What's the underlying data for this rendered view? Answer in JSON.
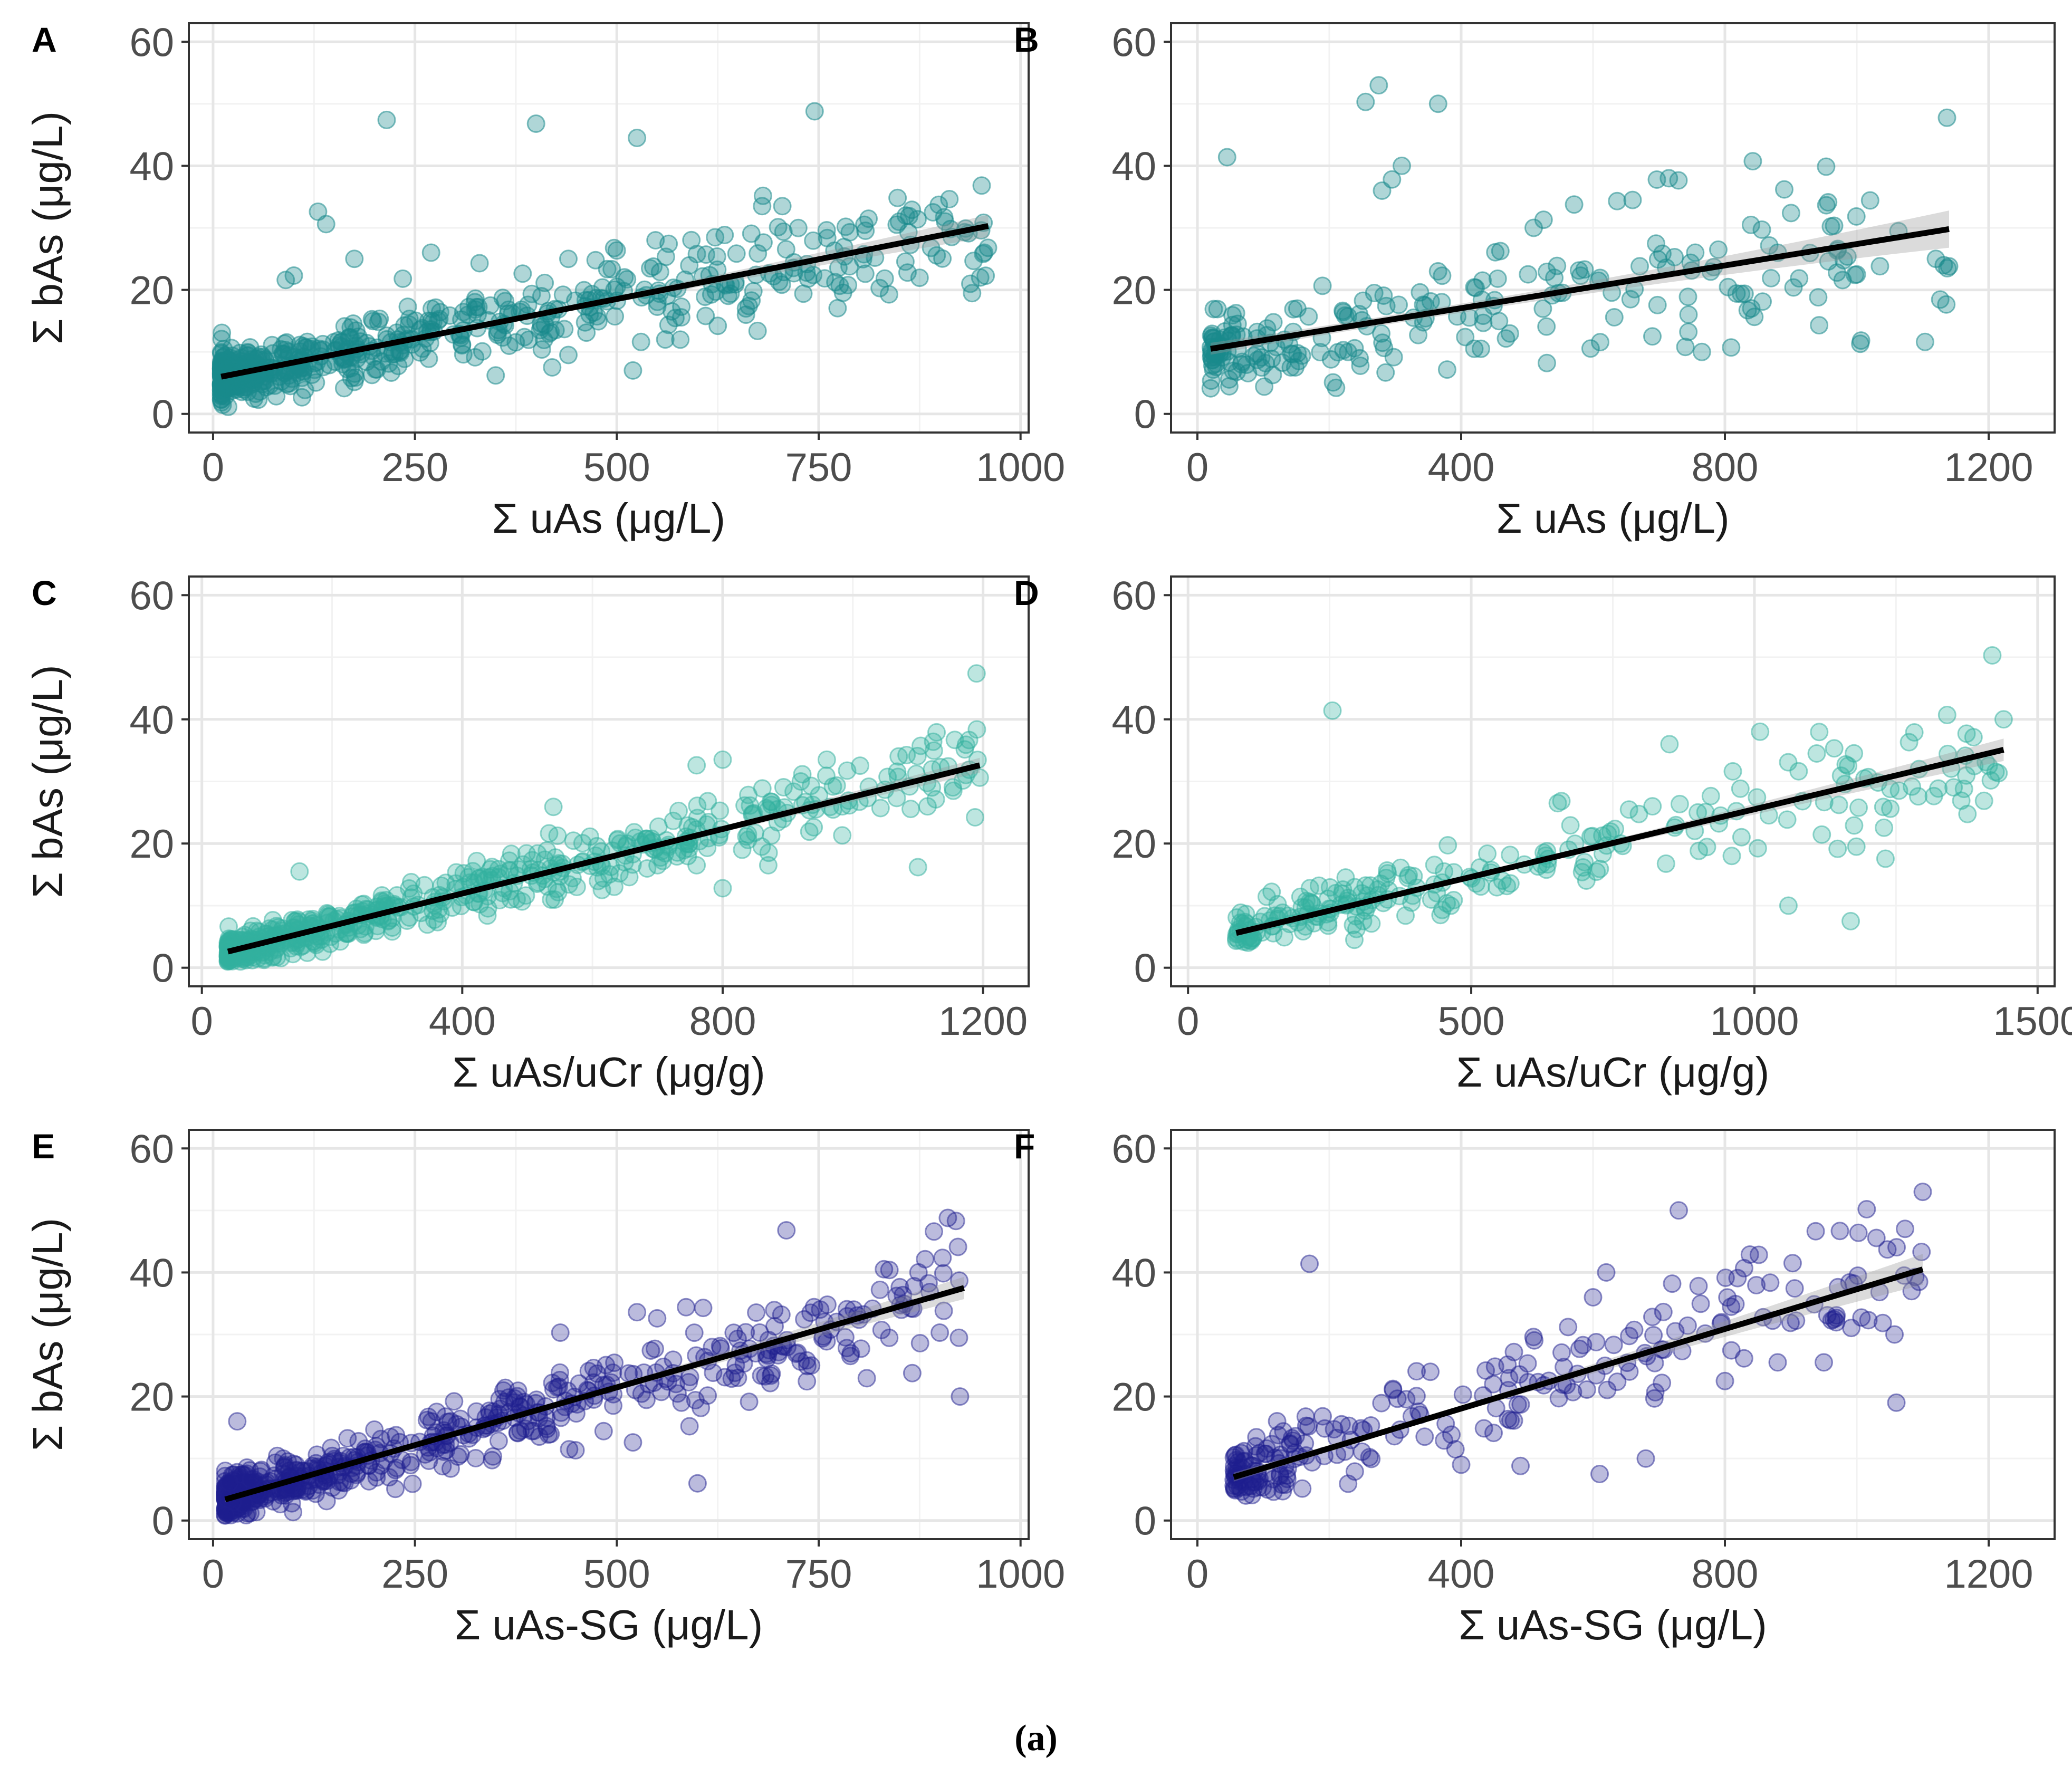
{
  "figure": {
    "caption": "(a)"
  },
  "chart_data": [
    {
      "type": "scatter",
      "panel": "A",
      "xlabel": "Σ uAs (μg/L)",
      "ylabel": "Σ bAs (μg/L)",
      "xlim": [
        -30,
        1010
      ],
      "ylim": [
        -3,
        63
      ],
      "xticks": [
        0,
        250,
        500,
        750,
        1000
      ],
      "yticks": [
        0,
        20,
        40,
        60
      ],
      "grid": true,
      "point_color": "#1a8a8c",
      "point_opacity": 0.35,
      "fit_line": {
        "x": [
          10,
          960
        ],
        "y": [
          6.0,
          30.3
        ],
        "ci": [
          0.3,
          1.8
        ]
      },
      "points": {
        "mode": "generated",
        "count": 620,
        "seed": 11,
        "x_range": [
          10,
          960
        ],
        "x_skew": 2.6,
        "residual_sd": 3.6,
        "y_min": 0.8,
        "explicit": [
          [
            215,
            47.4
          ],
          [
            400,
            46.8
          ],
          [
            525,
            44.5
          ],
          [
            745,
            48.8
          ],
          [
            130,
            32.6
          ],
          [
            140,
            30.6
          ],
          [
            175,
            25.0
          ],
          [
            235,
            21.8
          ],
          [
            270,
            26.0
          ],
          [
            330,
            24.3
          ],
          [
            440,
            25.0
          ],
          [
            500,
            20.5
          ],
          [
            610,
            15.8
          ],
          [
            625,
            14.2
          ],
          [
            660,
            16.0
          ],
          [
            660,
            17.0
          ],
          [
            680,
            33.5
          ],
          [
            705,
            33.5
          ],
          [
            735,
            22.8
          ],
          [
            860,
            22.8
          ],
          [
            955,
            26.0
          ],
          [
            950,
            22.0
          ],
          [
            100,
            22.3
          ],
          [
            90,
            21.6
          ],
          [
            520,
            7.0
          ],
          [
            530,
            11.6
          ],
          [
            440,
            9.5
          ],
          [
            560,
            12.0
          ],
          [
            420,
            7.5
          ],
          [
            350,
            6.2
          ]
        ]
      }
    },
    {
      "type": "scatter",
      "panel": "B",
      "xlabel": "Σ uAs (μg/L)",
      "ylabel": "",
      "xlim": [
        -40,
        1300
      ],
      "ylim": [
        -3,
        63
      ],
      "xticks": [
        0,
        400,
        800,
        1200
      ],
      "yticks": [
        0,
        20,
        40,
        60
      ],
      "grid": true,
      "point_color": "#1a8a8c",
      "point_opacity": 0.35,
      "fit_line": {
        "x": [
          20,
          1140
        ],
        "y": [
          10.5,
          29.8
        ],
        "ci": [
          0.7,
          3.0
        ]
      },
      "points": {
        "mode": "generated",
        "count": 230,
        "seed": 23,
        "x_range": [
          20,
          1140
        ],
        "x_skew": 1.9,
        "residual_sd": 5.5,
        "y_min": 3.8,
        "explicit": [
          [
            45,
            41.4
          ],
          [
            255,
            50.3
          ],
          [
            275,
            53.0
          ],
          [
            365,
            50.0
          ],
          [
            310,
            40.0
          ],
          [
            295,
            37.8
          ],
          [
            280,
            36.0
          ],
          [
            715,
            38.0
          ],
          [
            890,
            36.2
          ],
          [
            660,
            34.5
          ],
          [
            755,
            26.0
          ],
          [
            790,
            26.5
          ],
          [
            1000,
            22.5
          ],
          [
            1120,
            25.0
          ],
          [
            1140,
            23.8
          ],
          [
            970,
            22.8
          ],
          [
            740,
            10.8
          ],
          [
            765,
            10.0
          ],
          [
            840,
            17.0
          ],
          [
            530,
            8.2
          ],
          [
            420,
            10.5
          ],
          [
            430,
            10.5
          ],
          [
            510,
            30.0
          ],
          [
            690,
            12.5
          ]
        ]
      }
    },
    {
      "type": "scatter",
      "panel": "C",
      "xlabel": "Σ uAs/uCr (μg/g)",
      "ylabel": "Σ bAs (μg/L)",
      "xlim": [
        -20,
        1270
      ],
      "ylim": [
        -3,
        63
      ],
      "xticks": [
        0,
        400,
        800,
        1200
      ],
      "yticks": [
        0,
        20,
        40,
        60
      ],
      "grid": true,
      "point_color": "#33b0a0",
      "point_opacity": 0.32,
      "fit_line": {
        "x": [
          40,
          1195
        ],
        "y": [
          2.6,
          32.6
        ],
        "ci": [
          0.2,
          1.2
        ]
      },
      "points": {
        "mode": "generated",
        "count": 620,
        "seed": 37,
        "x_range": [
          40,
          1195
        ],
        "x_skew": 2.4,
        "residual_sd": 2.4,
        "y_min": 1.0,
        "explicit": [
          [
            1190,
            47.4
          ],
          [
            1195,
            30.6
          ],
          [
            760,
            32.6
          ],
          [
            800,
            33.5
          ],
          [
            960,
            33.5
          ],
          [
            920,
            30.0
          ],
          [
            1100,
            16.2
          ],
          [
            800,
            12.8
          ],
          [
            540,
            25.9
          ],
          [
            760,
            16.5
          ],
          [
            830,
            19.0
          ],
          [
            860,
            19.5
          ],
          [
            870,
            16.5
          ],
          [
            700,
            16.5
          ],
          [
            150,
            15.5
          ],
          [
            40,
            1.0
          ]
        ]
      }
    },
    {
      "type": "scatter",
      "panel": "D",
      "xlabel": "Σ uAs/uCr (μg/g)",
      "ylabel": "",
      "xlim": [
        -30,
        1530
      ],
      "ylim": [
        -3,
        63
      ],
      "xticks": [
        0,
        500,
        1000,
        1500
      ],
      "yticks": [
        0,
        20,
        40,
        60
      ],
      "grid": true,
      "point_color": "#33b0a0",
      "point_opacity": 0.32,
      "fit_line": {
        "x": [
          85,
          1440
        ],
        "y": [
          5.6,
          35.1
        ],
        "ci": [
          0.4,
          1.8
        ]
      },
      "points": {
        "mode": "generated",
        "count": 240,
        "seed": 41,
        "x_range": [
          85,
          1440
        ],
        "x_skew": 1.8,
        "residual_sd": 3.5,
        "y_min": 4.0,
        "explicit": [
          [
            255,
            41.4
          ],
          [
            1420,
            50.3
          ],
          [
            1440,
            40.0
          ],
          [
            850,
            36.0
          ],
          [
            1010,
            38.0
          ],
          [
            1110,
            34.5
          ],
          [
            1060,
            10.0
          ],
          [
            1170,
            7.5
          ],
          [
            1370,
            28.8
          ],
          [
            1240,
            25.6
          ],
          [
            1180,
            19.5
          ],
          [
            960,
            18.0
          ],
          [
            700,
            17.0
          ],
          [
            820,
            26.0
          ],
          [
            900,
            25.0
          ]
        ]
      }
    },
    {
      "type": "scatter",
      "panel": "E",
      "xlabel": "Σ uAs-SG (μg/L)",
      "ylabel": "Σ bAs (μg/L)",
      "xlim": [
        -30,
        1010
      ],
      "ylim": [
        -3,
        63
      ],
      "xticks": [
        0,
        250,
        500,
        750,
        1000
      ],
      "yticks": [
        0,
        20,
        40,
        60
      ],
      "grid": true,
      "point_color": "#1f1f8f",
      "point_opacity": 0.3,
      "fit_line": {
        "x": [
          15,
          930
        ],
        "y": [
          3.4,
          37.5
        ],
        "ci": [
          0.3,
          1.8
        ]
      },
      "points": {
        "mode": "generated",
        "count": 620,
        "seed": 53,
        "x_range": [
          15,
          930
        ],
        "x_skew": 2.6,
        "residual_sd": 3.2,
        "y_min": 0.8,
        "explicit": [
          [
            910,
            48.8
          ],
          [
            920,
            48.3
          ],
          [
            710,
            46.8
          ],
          [
            525,
            33.6
          ],
          [
            550,
            32.6
          ],
          [
            740,
            33.5
          ],
          [
            900,
            30.3
          ],
          [
            925,
            20.0
          ],
          [
            650,
            23.0
          ],
          [
            580,
            19.0
          ],
          [
            590,
            15.2
          ],
          [
            600,
            6.0
          ],
          [
            520,
            12.6
          ],
          [
            430,
            30.3
          ],
          [
            30,
            16.0
          ],
          [
            15,
            0.8
          ]
        ]
      }
    },
    {
      "type": "scatter",
      "panel": "F",
      "xlabel": "Σ uAs-SG (μg/L)",
      "ylabel": "",
      "xlim": [
        -40,
        1300
      ],
      "ylim": [
        -3,
        63
      ],
      "xticks": [
        0,
        400,
        800,
        1200
      ],
      "yticks": [
        0,
        20,
        40,
        60
      ],
      "grid": true,
      "point_color": "#1f1f8f",
      "point_opacity": 0.3,
      "fit_line": {
        "x": [
          55,
          1100
        ],
        "y": [
          7.0,
          40.5
        ],
        "ci": [
          0.5,
          2.5
        ]
      },
      "points": {
        "mode": "generated",
        "count": 240,
        "seed": 67,
        "x_range": [
          55,
          1100
        ],
        "x_skew": 1.9,
        "residual_sd": 4.2,
        "y_min": 4.0,
        "explicit": [
          [
            170,
            41.4
          ],
          [
            1100,
            53.0
          ],
          [
            1015,
            50.2
          ],
          [
            730,
            50.0
          ],
          [
            620,
            40.0
          ],
          [
            720,
            38.2
          ],
          [
            760,
            37.8
          ],
          [
            600,
            36.0
          ],
          [
            950,
            25.5
          ],
          [
            880,
            25.5
          ],
          [
            800,
            22.5
          ],
          [
            1060,
            19.0
          ],
          [
            610,
            7.5
          ],
          [
            680,
            10.0
          ],
          [
            490,
            8.8
          ],
          [
            400,
            9.0
          ]
        ]
      }
    }
  ]
}
